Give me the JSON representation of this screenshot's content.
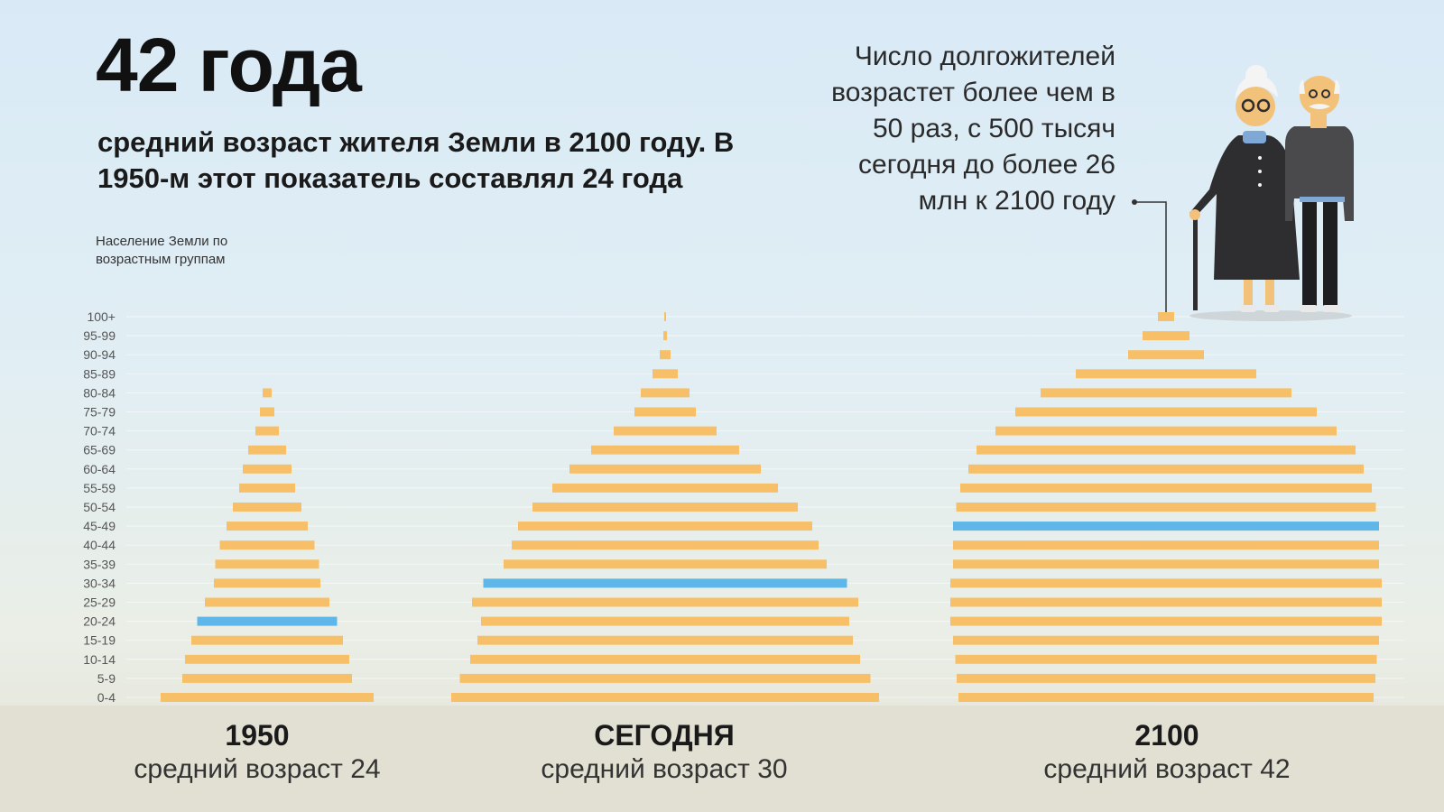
{
  "headline": "42 года",
  "subheadline": "средний возраст жителя Земли в 2100 году. В 1950-м этот показатель составлял 24 года",
  "chart_caption": "Население Земли по возрастным группам",
  "callout": "Число долгожителей возрастет более чем в 50 раз, с 500 тысяч сегодня до более 26 млн к 2100 году",
  "icons": {
    "elderly_couple": "elderly-couple-illustration"
  },
  "colors": {
    "bar": "#f7c068",
    "highlight": "#5fb6e8",
    "bottom_band": "#e2e0d2"
  },
  "chart_data": {
    "type": "bar",
    "orientation": "horizontal-pyramid",
    "categories": [
      "0-4",
      "5-9",
      "10-14",
      "15-19",
      "20-24",
      "25-29",
      "30-34",
      "35-39",
      "40-44",
      "45-49",
      "50-54",
      "55-59",
      "60-64",
      "65-69",
      "70-74",
      "75-79",
      "80-84",
      "85-89",
      "90-94",
      "95-99",
      "100+"
    ],
    "series": [
      {
        "year_label": "1950",
        "subtitle": "средний возраст 24",
        "median_group": "20-24",
        "values": [
          236,
          188,
          182,
          168,
          155,
          138,
          118,
          115,
          105,
          90,
          76,
          62,
          54,
          42,
          26,
          16,
          10,
          0,
          0,
          0,
          0
        ]
      },
      {
        "year_label": "СЕГОДНЯ",
        "subtitle": "средний возраст 30",
        "median_group": "30-34",
        "values": [
          474,
          455,
          432,
          416,
          408,
          428,
          403,
          358,
          340,
          326,
          294,
          250,
          212,
          164,
          114,
          68,
          54,
          28,
          12,
          4,
          2
        ]
      },
      {
        "year_label": "2100",
        "subtitle": "средний возраст 42",
        "median_group": "45-49",
        "values": [
          460,
          464,
          467,
          472,
          478,
          478,
          478,
          472,
          472,
          472,
          465,
          456,
          438,
          420,
          378,
          334,
          278,
          200,
          84,
          52,
          18
        ]
      }
    ]
  }
}
